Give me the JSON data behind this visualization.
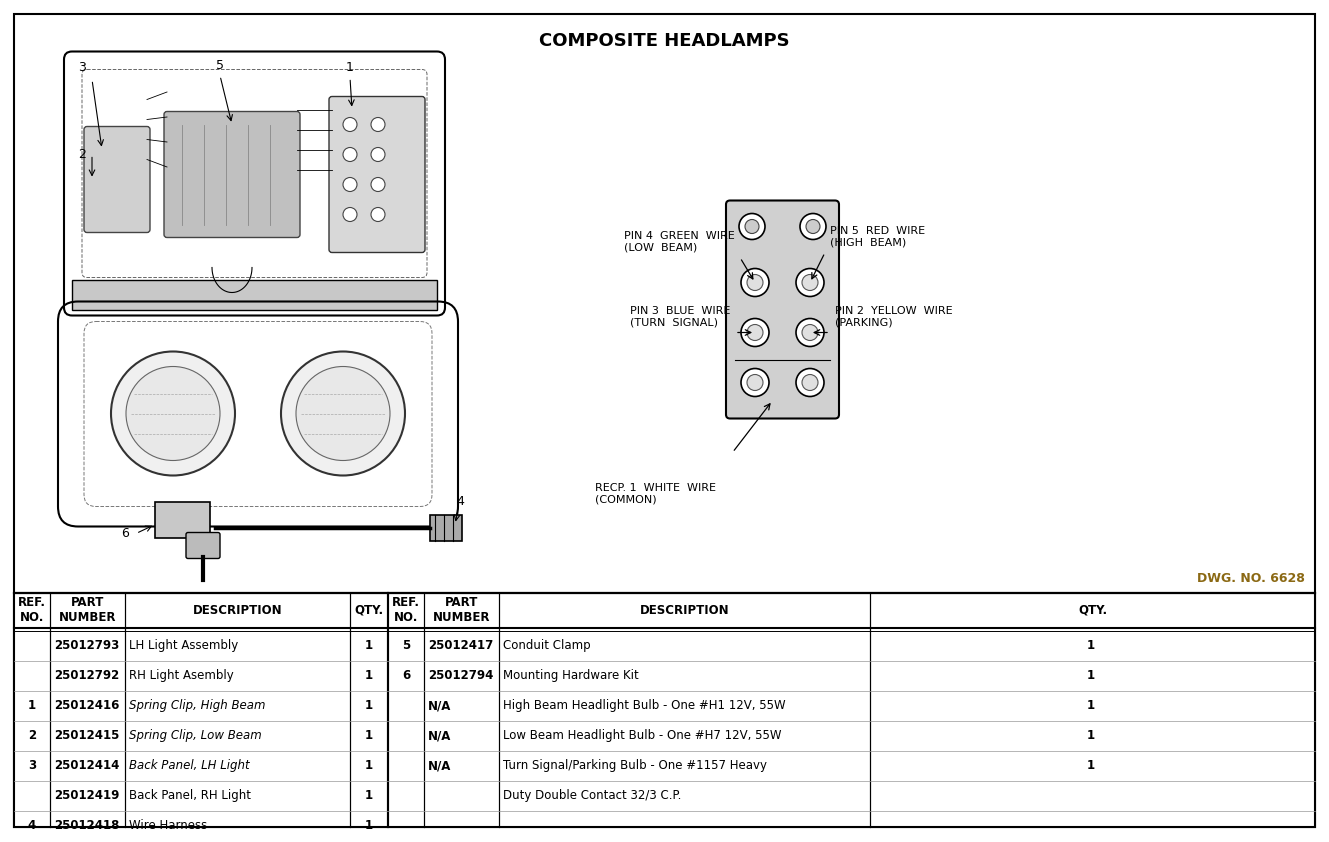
{
  "title": "COMPOSITE HEADLAMPS",
  "title_fontsize": 13,
  "dwg_no": "DWG. NO. 6628",
  "dwg_color": "#8B6914",
  "bg_color": "#ffffff",
  "table_rows_left": [
    [
      "",
      "25012793",
      "LH Light Assembly",
      "1"
    ],
    [
      "",
      "25012792",
      "RH Light Asembly",
      "1"
    ],
    [
      "1",
      "25012416",
      "Spring Clip, High Beam",
      "1"
    ],
    [
      "2",
      "25012415",
      "Spring Clip, Low Beam",
      "1"
    ],
    [
      "3",
      "25012414",
      "Back Panel, LH Light",
      "1"
    ],
    [
      "",
      "25012419",
      "Back Panel, RH Light",
      "1"
    ],
    [
      "4",
      "25012418",
      "Wire Harness",
      "1"
    ]
  ],
  "table_rows_right": [
    [
      "5",
      "25012417",
      "Conduit Clamp",
      "1"
    ],
    [
      "6",
      "25012794",
      "Mounting Hardware Kit",
      "1"
    ],
    [
      "",
      "N/A",
      "High Beam Headlight Bulb - One #H1 12V, 55W",
      "1"
    ],
    [
      "",
      "N/A",
      "Low Beam Headlight Bulb - One #H7 12V, 55W",
      "1"
    ],
    [
      "",
      "N/A",
      "Turn Signal/Parking Bulb - One #1157 Heavy",
      "1"
    ],
    [
      "",
      "",
      "Duty Double Contact 32/3 C.P.",
      ""
    ],
    [
      "",
      "",
      "",
      ""
    ]
  ],
  "label_fontsize": 8.0,
  "table_fontsize": 8.5,
  "header_fontsize": 8.5
}
